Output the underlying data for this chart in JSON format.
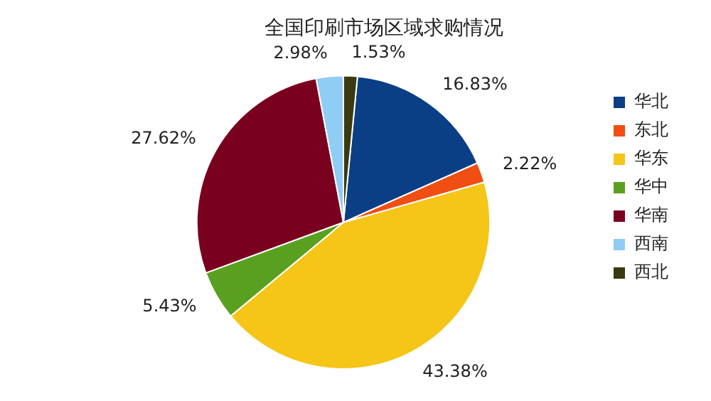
{
  "chart_data": {
    "type": "pie",
    "title": "全国印刷市场区域求购情况",
    "categories": [
      "华北",
      "东北",
      "华东",
      "华中",
      "华南",
      "西南",
      "西北"
    ],
    "values": [
      16.83,
      2.22,
      43.38,
      5.43,
      27.62,
      2.98,
      1.53
    ],
    "colors": [
      "#0a3f86",
      "#f04e12",
      "#f5c518",
      "#5aa020",
      "#7a0020",
      "#8fcdf5",
      "#3a3a10"
    ],
    "value_labels": [
      "16.83%",
      "2.22%",
      "43.38%",
      "5.43%",
      "27.62%",
      "2.98%",
      "1.53%"
    ],
    "legend": "right"
  }
}
